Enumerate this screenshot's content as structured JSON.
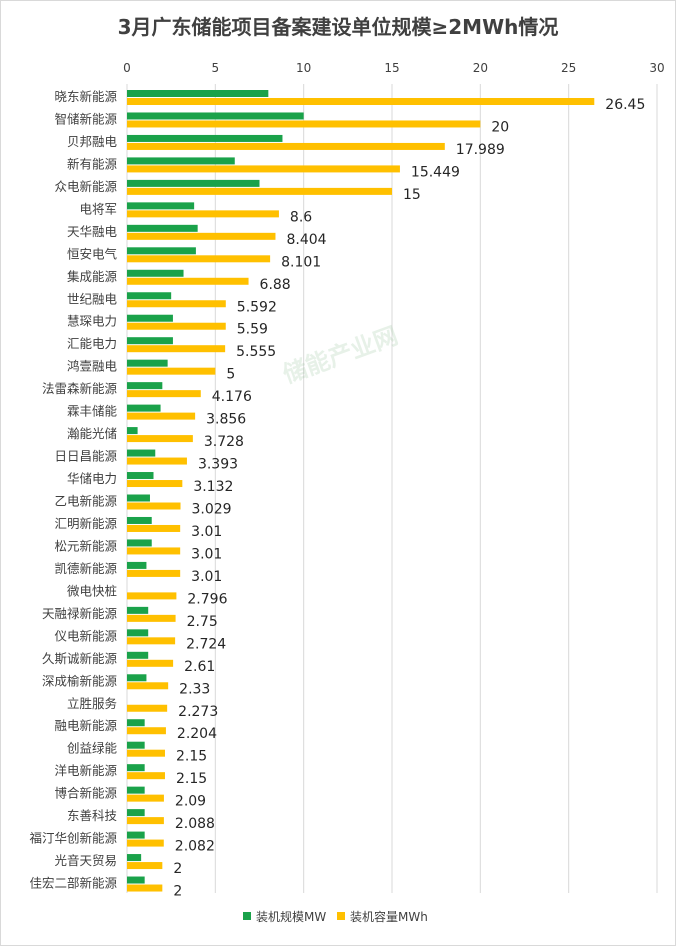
{
  "chart_data": {
    "type": "bar",
    "orientation": "horizontal",
    "title": "3月广东储能项目备案建设单位规模≥2MWh情况",
    "xlim": [
      0,
      30
    ],
    "xticks": [
      0,
      5,
      10,
      15,
      20,
      25,
      30
    ],
    "xtick_labels": [
      "0",
      "5",
      "10",
      "15",
      "20",
      "25",
      "30"
    ],
    "legend_position": "bottom",
    "watermark": "储能产业网",
    "categories": [
      "晓东新能源",
      "智储新能源",
      "贝邦融电",
      "新有能源",
      "众电新能源",
      "电将军",
      "天华融电",
      "恒安电气",
      "集成能源",
      "世纪融电",
      "慧琛电力",
      "汇能电力",
      "鸿壹融电",
      "法雷森新能源",
      "霖丰储能",
      "瀚能光储",
      "日日昌能源",
      "华储电力",
      "乙电新能源",
      "汇明新能源",
      "松元新能源",
      "凯德新能源",
      "微电快桩",
      "天融禄新能源",
      "仪电新能源",
      "久斯诚新能源",
      "深成榆新能源",
      "立胜服务",
      "融电新能源",
      "创益绿能",
      "洋电新能源",
      "博合新能源",
      "东善科技",
      "福汀华创新能源",
      "光音天贸易",
      "佳宏二部新能源"
    ],
    "series": [
      {
        "name": "装机规模MW",
        "color": "#1aa24a",
        "values": [
          8,
          10,
          8.8,
          6.1,
          7.5,
          3.8,
          4,
          3.9,
          3.2,
          2.5,
          2.6,
          2.6,
          2.3,
          2,
          1.9,
          0.6,
          1.6,
          1.5,
          1.3,
          1.4,
          1.4,
          1.1,
          0,
          1.2,
          1.2,
          1.2,
          1.1,
          0,
          1,
          1,
          1,
          1,
          1,
          1,
          0.8,
          1
        ]
      },
      {
        "name": "装机容量MWh",
        "color": "#ffc000",
        "values": [
          26.45,
          20,
          17.989,
          15.449,
          15,
          8.6,
          8.404,
          8.101,
          6.88,
          5.592,
          5.59,
          5.555,
          5,
          4.176,
          3.856,
          3.728,
          3.393,
          3.132,
          3.029,
          3.01,
          3.01,
          3.01,
          2.796,
          2.75,
          2.724,
          2.61,
          2.33,
          2.273,
          2.204,
          2.15,
          2.15,
          2.09,
          2.088,
          2.082,
          2,
          2
        ],
        "value_labels": [
          "26.45",
          "20",
          "17.989",
          "15.449",
          "15",
          "8.6",
          "8.404",
          "8.101",
          "6.88",
          "5.592",
          "5.59",
          "5.555",
          "5",
          "4.176",
          "3.856",
          "3.728",
          "3.393",
          "3.132",
          "3.029",
          "3.01",
          "3.01",
          "3.01",
          "2.796",
          "2.75",
          "2.724",
          "2.61",
          "2.33",
          "2.273",
          "2.204",
          "2.15",
          "2.15",
          "2.09",
          "2.088",
          "2.082",
          "2",
          "2"
        ]
      }
    ]
  }
}
